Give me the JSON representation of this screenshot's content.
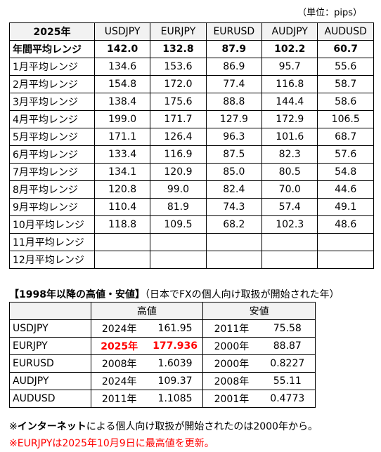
{
  "unit_label": "（単位：pips）",
  "range_table": {
    "header_label": "2025年",
    "columns": [
      "USDJPY",
      "EURJPY",
      "EURUSD",
      "AUDJPY",
      "AUDUSD"
    ],
    "rows": [
      {
        "label": "年間平均レンジ",
        "values": [
          "142.0",
          "132.8",
          "87.9",
          "102.2",
          "60.7"
        ]
      },
      {
        "label": "1月平均レンジ",
        "values": [
          "134.6",
          "153.6",
          "86.9",
          "95.7",
          "55.6"
        ]
      },
      {
        "label": "2月平均レンジ",
        "values": [
          "154.8",
          "172.0",
          "77.4",
          "116.8",
          "58.7"
        ]
      },
      {
        "label": "3月平均レンジ",
        "values": [
          "138.4",
          "175.6",
          "88.8",
          "144.4",
          "58.6"
        ]
      },
      {
        "label": "4月平均レンジ",
        "values": [
          "199.0",
          "171.7",
          "127.9",
          "172.9",
          "106.5"
        ]
      },
      {
        "label": "5月平均レンジ",
        "values": [
          "171.1",
          "126.4",
          "96.3",
          "101.6",
          "68.7"
        ]
      },
      {
        "label": "6月平均レンジ",
        "values": [
          "133.4",
          "116.9",
          "87.5",
          "82.3",
          "57.6"
        ]
      },
      {
        "label": "7月平均レンジ",
        "values": [
          "134.1",
          "120.9",
          "85.0",
          "80.5",
          "54.8"
        ]
      },
      {
        "label": "8月平均レンジ",
        "values": [
          "120.8",
          "99.0",
          "82.4",
          "70.0",
          "44.6"
        ]
      },
      {
        "label": "9月平均レンジ",
        "values": [
          "110.4",
          "81.9",
          "74.3",
          "57.4",
          "49.1"
        ]
      },
      {
        "label": "10月平均レンジ",
        "values": [
          "118.8",
          "109.5",
          "68.2",
          "102.3",
          "48.6"
        ]
      },
      {
        "label": "11月平均レンジ",
        "values": [
          "",
          "",
          "",
          "",
          ""
        ]
      },
      {
        "label": "12月平均レンジ",
        "values": [
          "",
          "",
          "",
          "",
          ""
        ]
      }
    ]
  },
  "hl_section": {
    "title_bold": "【1998年以降の高値・安値】",
    "title_note": "（日本でFXの個人向け取扱が開始された年）",
    "high_label": "高値",
    "low_label": "安値",
    "rows": [
      {
        "pair": "USDJPY",
        "high_year": "2024年",
        "high": "161.95",
        "low_year": "2011年",
        "low": "75.58"
      },
      {
        "pair": "EURJPY",
        "high_year": "2025年",
        "high": "177.936",
        "low_year": "2000年",
        "low": "88.87"
      },
      {
        "pair": "EURUSD",
        "high_year": "2008年",
        "high": "1.6039",
        "low_year": "2000年",
        "low": "0.8227"
      },
      {
        "pair": "AUDJPY",
        "high_year": "2024年",
        "high": "109.37",
        "low_year": "2008年",
        "low": "55.11"
      },
      {
        "pair": "AUDUSD",
        "high_year": "2011年",
        "high": "1.1085",
        "low_year": "2001年",
        "low": "0.4773"
      }
    ]
  },
  "notes": {
    "note1_prefix": "※",
    "note1_bold": "インターネット",
    "note1_rest": "による個人向け取扱が開始されたのは2000年から。",
    "note2": "※EURJPYは2025年10月9日に最高値を更新。"
  },
  "colors": {
    "highlight": "#ff0000",
    "header_bg": "#f2f2f2"
  }
}
